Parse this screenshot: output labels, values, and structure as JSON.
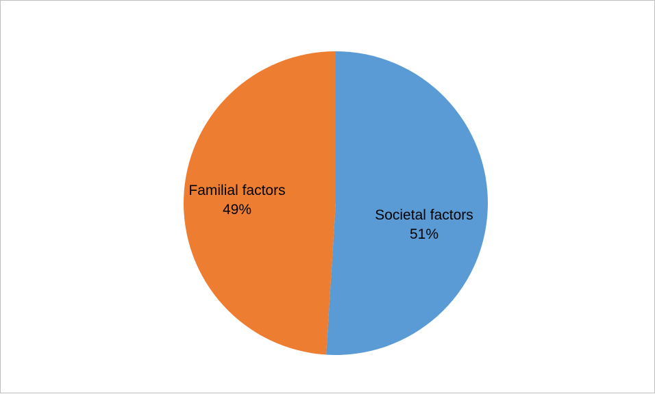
{
  "chart_data": {
    "type": "pie",
    "title": "",
    "start_angle_deg": 0,
    "direction": "clockwise",
    "legend": "none",
    "slices": [
      {
        "name": "Societal factors",
        "value": 51,
        "label": "51%",
        "color": "#5b9bd5"
      },
      {
        "name": "Familial factors",
        "value": 49,
        "label": "49%",
        "color": "#ed7d31"
      }
    ]
  }
}
